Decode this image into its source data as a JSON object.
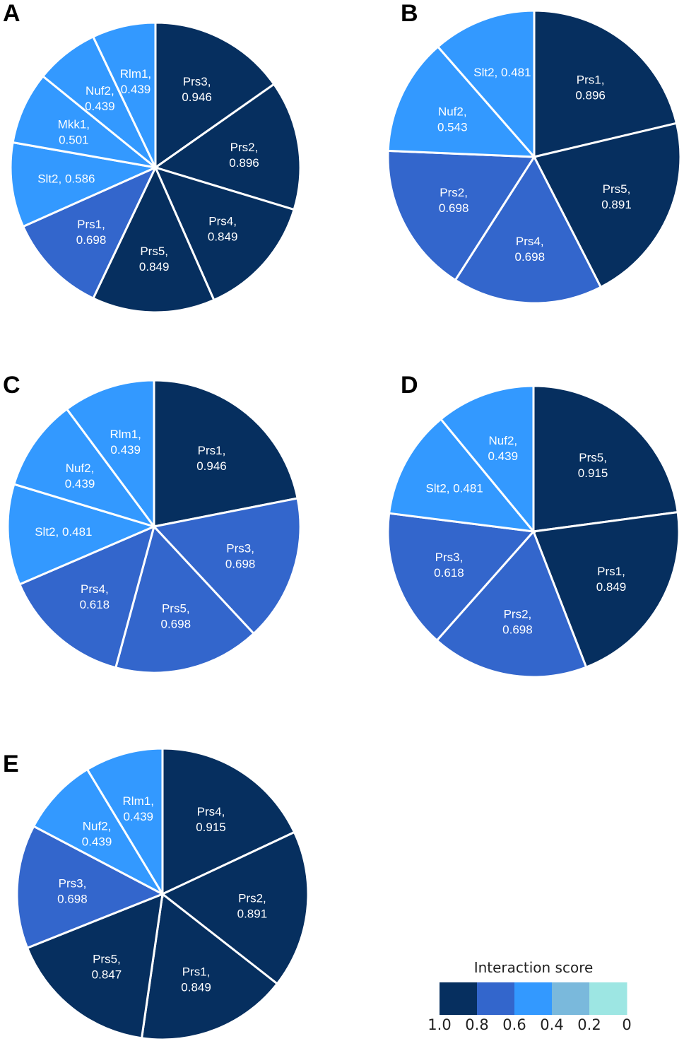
{
  "chart_data": [
    {
      "type": "pie",
      "panel": "A",
      "start": "12 o'clock, clockwise",
      "slices": [
        {
          "name": "Prs3",
          "value": 0.946
        },
        {
          "name": "Prs2",
          "value": 0.896
        },
        {
          "name": "Prs4",
          "value": 0.849
        },
        {
          "name": "Prs5",
          "value": 0.849
        },
        {
          "name": "Prs1",
          "value": 0.698
        },
        {
          "name": "Slt2",
          "value": 0.586,
          "one_line": true
        },
        {
          "name": "Mkk1",
          "value": 0.501
        },
        {
          "name": "Nuf2",
          "value": 0.439
        },
        {
          "name": "Rlm1",
          "value": 0.439
        }
      ]
    },
    {
      "type": "pie",
      "panel": "B",
      "start": "12 o'clock, clockwise",
      "slices": [
        {
          "name": "Prs1",
          "value": 0.896
        },
        {
          "name": "Prs5",
          "value": 0.891
        },
        {
          "name": "Prs4",
          "value": 0.698
        },
        {
          "name": "Prs2",
          "value": 0.698
        },
        {
          "name": "Nuf2",
          "value": 0.543
        },
        {
          "name": "Slt2",
          "value": 0.481,
          "one_line": true
        }
      ]
    },
    {
      "type": "pie",
      "panel": "C",
      "start": "12 o'clock, clockwise",
      "slices": [
        {
          "name": "Prs1",
          "value": 0.946
        },
        {
          "name": "Prs3",
          "value": 0.698
        },
        {
          "name": "Prs5",
          "value": 0.698
        },
        {
          "name": "Prs4",
          "value": 0.618
        },
        {
          "name": "Slt2",
          "value": 0.481,
          "one_line": true
        },
        {
          "name": "Nuf2",
          "value": 0.439
        },
        {
          "name": "Rlm1",
          "value": 0.439
        }
      ]
    },
    {
      "type": "pie",
      "panel": "D",
      "start": "12 o'clock, clockwise",
      "slices": [
        {
          "name": "Prs5",
          "value": 0.915
        },
        {
          "name": "Prs1",
          "value": 0.849
        },
        {
          "name": "Prs2",
          "value": 0.698
        },
        {
          "name": "Prs3",
          "value": 0.618
        },
        {
          "name": "Slt2",
          "value": 0.481,
          "one_line": true
        },
        {
          "name": "Nuf2",
          "value": 0.439
        }
      ]
    },
    {
      "type": "pie",
      "panel": "E",
      "start": "12 o'clock, clockwise",
      "slices": [
        {
          "name": "Prs4",
          "value": 0.915
        },
        {
          "name": "Prs2",
          "value": 0.891
        },
        {
          "name": "Prs1",
          "value": 0.849
        },
        {
          "name": "Prs5",
          "value": 0.847
        },
        {
          "name": "Prs3",
          "value": 0.698
        },
        {
          "name": "Nuf2",
          "value": 0.439
        },
        {
          "name": "Rlm1",
          "value": 0.439
        }
      ]
    }
  ],
  "legend": {
    "title": "Interaction score",
    "ticks": [
      "1.0",
      "0.8",
      "0.6",
      "0.4",
      "0.2",
      "0"
    ],
    "bins": [
      {
        "min": 0.8,
        "max": 1.0,
        "color": "#062f5f"
      },
      {
        "min": 0.6,
        "max": 0.8,
        "color": "#3366cc"
      },
      {
        "min": 0.4,
        "max": 0.6,
        "color": "#3399ff"
      },
      {
        "min": 0.2,
        "max": 0.4,
        "color": "#7ab9dc"
      },
      {
        "min": 0.0,
        "max": 0.2,
        "color": "#9de6e3"
      }
    ]
  }
}
